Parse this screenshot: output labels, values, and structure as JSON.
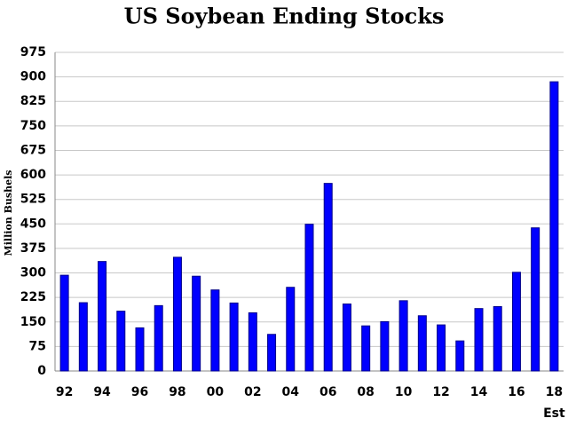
{
  "chart_data": {
    "type": "bar",
    "title": "US Soybean Ending Stocks",
    "y_label": "Million Bushels",
    "annotation": "Est",
    "categories": [
      "92",
      null,
      "94",
      null,
      "96",
      null,
      "98",
      null,
      "00",
      null,
      "02",
      null,
      "04",
      null,
      "06",
      null,
      "08",
      null,
      "10",
      null,
      "12",
      null,
      "14",
      null,
      "16",
      null,
      "18"
    ],
    "values": [
      293,
      209,
      335,
      183,
      132,
      200,
      348,
      290,
      248,
      208,
      178,
      112,
      256,
      449,
      574,
      205,
      138,
      151,
      215,
      169,
      141,
      92,
      191,
      197,
      302,
      438,
      885
    ],
    "color": "#0000ff",
    "ylim": [
      0,
      975
    ],
    "yticks": [
      0,
      75,
      150,
      225,
      300,
      375,
      450,
      525,
      600,
      675,
      750,
      825,
      900,
      975
    ],
    "grid": true
  }
}
